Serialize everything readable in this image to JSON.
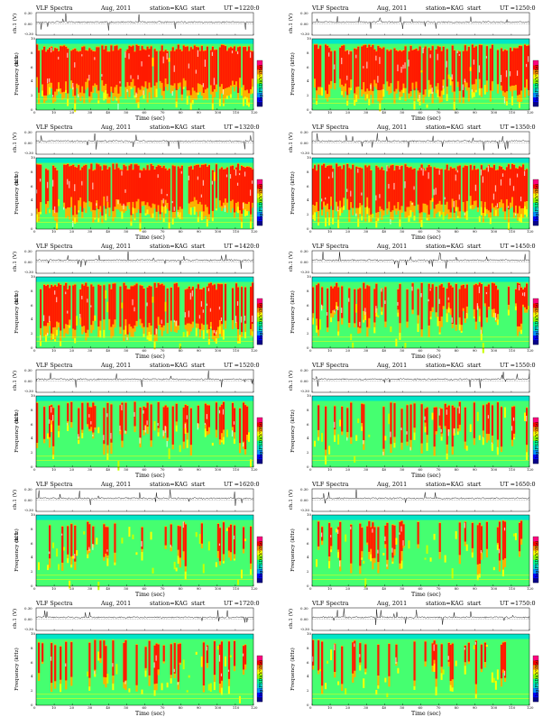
{
  "header": {
    "label": "VLF Spectra",
    "date": "Aug, 2011",
    "station": "station=KAG",
    "start_label": "start",
    "ut_label": "UT ="
  },
  "colors": {
    "background": "#ffffff",
    "colorbar": [
      "#08008a",
      "#0000ff",
      "#0090ff",
      "#00e0d0",
      "#00ff90",
      "#8fff00",
      "#ffff00",
      "#ff9000",
      "#ff0000",
      "#ff0080"
    ]
  },
  "chart_data": [
    {
      "type": "heatmap",
      "title": "VLF Spectra",
      "start_time": "1220:0",
      "channel_label": "ch.1",
      "series": [
        {
          "name": "ch.1 (V)",
          "ylim": [
            -0.3,
            0.3
          ],
          "yticks": [
            "0.30",
            "0.00",
            "-0.30"
          ]
        }
      ],
      "xlabel": "Time (sec)",
      "xlim": [
        0,
        120
      ],
      "xticks": [
        "0",
        "10",
        "20",
        "30",
        "40",
        "50",
        "60",
        "70",
        "80",
        "90",
        "100",
        "110",
        "120"
      ],
      "ylabel": "Frequency (kHz)",
      "ylim": [
        0,
        10
      ],
      "yticks": [
        "0",
        "2",
        "4",
        "6",
        "8",
        "10"
      ],
      "colorbar_label": "log(PSD)(V²/Hz)",
      "activity": 0.85
    },
    {
      "type": "heatmap",
      "title": "VLF Spectra",
      "start_time": "1250:0",
      "channel_label": "",
      "series": [
        {
          "name": "ch.1 (V)",
          "ylim": [
            -0.3,
            0.3
          ],
          "yticks": [
            "0.30",
            "0.00",
            "-0.30"
          ]
        }
      ],
      "xlabel": "Time (sec)",
      "xlim": [
        0,
        120
      ],
      "xticks": [
        "0",
        "10",
        "20",
        "30",
        "40",
        "50",
        "60",
        "70",
        "80",
        "90",
        "100",
        "110",
        "120"
      ],
      "ylabel": "Frequency (kHz)",
      "ylim": [
        0,
        10
      ],
      "yticks": [
        "0",
        "2",
        "4",
        "6",
        "8",
        "10"
      ],
      "colorbar_label": "log(PSD)(V²/Hz)",
      "activity": 0.83
    },
    {
      "type": "heatmap",
      "title": "VLF Spectra",
      "start_time": "1320:0",
      "channel_label": "ch.1",
      "series": [
        {
          "name": "ch.1 (V)",
          "ylim": [
            -0.3,
            0.3
          ],
          "yticks": [
            "0.30",
            "0.00",
            "-0.30"
          ]
        }
      ],
      "xlabel": "Time (sec)",
      "xlim": [
        0,
        120
      ],
      "xticks": [
        "0",
        "10",
        "20",
        "30",
        "40",
        "50",
        "60",
        "70",
        "80",
        "90",
        "100",
        "110",
        "120"
      ],
      "ylabel": "Frequency (kHz)",
      "ylim": [
        0,
        10
      ],
      "yticks": [
        "0",
        "2",
        "4",
        "6",
        "8",
        "10"
      ],
      "colorbar_label": "log(PSD)(V²/Hz)",
      "activity": 0.82
    },
    {
      "type": "heatmap",
      "title": "VLF Spectra",
      "start_time": "1350:0",
      "channel_label": "",
      "series": [
        {
          "name": "ch.1 (V)",
          "ylim": [
            -0.3,
            0.3
          ],
          "yticks": [
            "0.30",
            "0.00",
            "-0.30"
          ]
        }
      ],
      "xlabel": "Time (sec)",
      "xlim": [
        0,
        120
      ],
      "xticks": [
        "0",
        "10",
        "20",
        "30",
        "40",
        "50",
        "60",
        "70",
        "80",
        "90",
        "100",
        "110",
        "120"
      ],
      "ylabel": "Frequency (kHz)",
      "ylim": [
        0,
        10
      ],
      "yticks": [
        "0",
        "2",
        "4",
        "6",
        "8",
        "10"
      ],
      "colorbar_label": "log(PSD)(V²/Hz)",
      "activity": 0.8
    },
    {
      "type": "heatmap",
      "title": "VLF Spectra",
      "start_time": "1420:0",
      "channel_label": "ch.1",
      "series": [
        {
          "name": "ch.1 (V)",
          "ylim": [
            -0.3,
            0.3
          ],
          "yticks": [
            "0.30",
            "0.00",
            "-0.30"
          ]
        }
      ],
      "xlabel": "Time (sec)",
      "xlim": [
        0,
        120
      ],
      "xticks": [
        "0",
        "10",
        "20",
        "30",
        "40",
        "50",
        "60",
        "70",
        "80",
        "90",
        "100",
        "110",
        "120"
      ],
      "ylabel": "Frequency (kHz)",
      "ylim": [
        0,
        10
      ],
      "yticks": [
        "0",
        "2",
        "4",
        "6",
        "8",
        "10"
      ],
      "colorbar_label": "log(PSD)(V²/Hz)",
      "activity": 0.68
    },
    {
      "type": "heatmap",
      "title": "VLF Spectra",
      "start_time": "1450:0",
      "channel_label": "",
      "series": [
        {
          "name": "ch.1 (V)",
          "ylim": [
            -0.3,
            0.3
          ],
          "yticks": [
            "0.30",
            "0.00",
            "-0.30"
          ]
        }
      ],
      "xlabel": "Time (sec)",
      "xlim": [
        0,
        120
      ],
      "xticks": [
        "0",
        "10",
        "20",
        "30",
        "40",
        "50",
        "60",
        "70",
        "80",
        "90",
        "100",
        "110",
        "120"
      ],
      "ylabel": "Frequency (kHz)",
      "ylim": [
        0,
        10
      ],
      "yticks": [
        "0",
        "2",
        "4",
        "6",
        "8",
        "10"
      ],
      "colorbar_label": "log(PSD)(V²/Hz)",
      "activity": 0.55
    },
    {
      "type": "heatmap",
      "title": "VLF Spectra",
      "start_time": "1520:0",
      "channel_label": "ch.1",
      "series": [
        {
          "name": "ch.1 (V)",
          "ylim": [
            -0.3,
            0.3
          ],
          "yticks": [
            "0.30",
            "0.00",
            "-0.30"
          ]
        }
      ],
      "xlabel": "Time (sec)",
      "xlim": [
        0,
        120
      ],
      "xticks": [
        "0",
        "10",
        "20",
        "30",
        "40",
        "50",
        "60",
        "70",
        "80",
        "90",
        "100",
        "110",
        "120"
      ],
      "ylabel": "Frequency (kHz)",
      "ylim": [
        0,
        10
      ],
      "yticks": [
        "0",
        "2",
        "4",
        "6",
        "8",
        "10"
      ],
      "colorbar_label": "log(PSD)(V²/Hz)",
      "activity": 0.4
    },
    {
      "type": "heatmap",
      "title": "VLF Spectra",
      "start_time": "1550:0",
      "channel_label": "",
      "series": [
        {
          "name": "ch.1 (V)",
          "ylim": [
            -0.3,
            0.3
          ],
          "yticks": [
            "0.30",
            "0.00",
            "-0.30"
          ]
        }
      ],
      "xlabel": "Time (sec)",
      "xlim": [
        0,
        120
      ],
      "xticks": [
        "0",
        "10",
        "20",
        "30",
        "40",
        "50",
        "60",
        "70",
        "80",
        "90",
        "100",
        "110",
        "120"
      ],
      "ylabel": "Frequency (kHz)",
      "ylim": [
        0,
        10
      ],
      "yticks": [
        "0",
        "2",
        "4",
        "6",
        "8",
        "10"
      ],
      "colorbar_label": "log(PSD)(V²/Hz)",
      "activity": 0.38
    },
    {
      "type": "heatmap",
      "title": "VLF Spectra",
      "start_time": "1620:0",
      "channel_label": "ch.1",
      "series": [
        {
          "name": "ch.1 (V)",
          "ylim": [
            -0.3,
            0.3
          ],
          "yticks": [
            "0.30",
            "0.00",
            "-0.30"
          ]
        }
      ],
      "xlabel": "Time (sec)",
      "xlim": [
        0,
        120
      ],
      "xticks": [
        "0",
        "10",
        "20",
        "30",
        "40",
        "50",
        "60",
        "70",
        "80",
        "90",
        "100",
        "110",
        "120"
      ],
      "ylabel": "Frequency (kHz)",
      "ylim": [
        0,
        10
      ],
      "yticks": [
        "0",
        "2",
        "4",
        "6",
        "8",
        "10"
      ],
      "colorbar_label": "log(PSD)(V²/Hz)",
      "activity": 0.28
    },
    {
      "type": "heatmap",
      "title": "VLF Spectra",
      "start_time": "1650:0",
      "channel_label": "",
      "series": [
        {
          "name": "ch.1 (V)",
          "ylim": [
            -0.3,
            0.3
          ],
          "yticks": [
            "0.30",
            "0.00",
            "-0.30"
          ]
        }
      ],
      "xlabel": "Time (sec)",
      "xlim": [
        0,
        120
      ],
      "xticks": [
        "0",
        "10",
        "20",
        "30",
        "40",
        "50",
        "60",
        "70",
        "80",
        "90",
        "100",
        "110",
        "120"
      ],
      "ylabel": "Frequency (kHz)",
      "ylim": [
        0,
        10
      ],
      "yticks": [
        "0",
        "2",
        "4",
        "6",
        "8",
        "10"
      ],
      "colorbar_label": "log(PSD)(V²/Hz)",
      "activity": 0.3
    },
    {
      "type": "heatmap",
      "title": "VLF Spectra",
      "start_time": "1720:0",
      "channel_label": "",
      "series": [
        {
          "name": "ch.1 (V)",
          "ylim": [
            -0.3,
            0.3
          ],
          "yticks": [
            "0.30",
            "0.00",
            "-0.30"
          ]
        }
      ],
      "xlabel": "Time (sec)",
      "xlim": [
        0,
        120
      ],
      "xticks": [
        "0",
        "10",
        "20",
        "30",
        "40",
        "50",
        "60",
        "70",
        "80",
        "90",
        "100",
        "110",
        "120"
      ],
      "ylabel": "Frequency (kHz)",
      "ylim": [
        0,
        10
      ],
      "yticks": [
        "0",
        "2",
        "4",
        "6",
        "8",
        "10"
      ],
      "colorbar_label": "log(PSD)(V²/Hz)",
      "activity": 0.3
    },
    {
      "type": "heatmap",
      "title": "VLF Spectra",
      "start_time": "1750:0",
      "channel_label": "",
      "series": [
        {
          "name": "ch.1 (V)",
          "ylim": [
            -0.3,
            0.3
          ],
          "yticks": [
            "0.30",
            "0.00",
            "-0.30"
          ]
        }
      ],
      "xlabel": "Time (sec)",
      "xlim": [
        0,
        120
      ],
      "xticks": [
        "0",
        "10",
        "20",
        "30",
        "40",
        "50",
        "60",
        "70",
        "80",
        "90",
        "100",
        "110",
        "120"
      ],
      "ylabel": "Frequency (kHz)",
      "ylim": [
        0,
        10
      ],
      "yticks": [
        "0",
        "2",
        "4",
        "6",
        "8",
        "10"
      ],
      "colorbar_label": "log(PSD)(V²/Hz)",
      "activity": 0.36
    }
  ]
}
